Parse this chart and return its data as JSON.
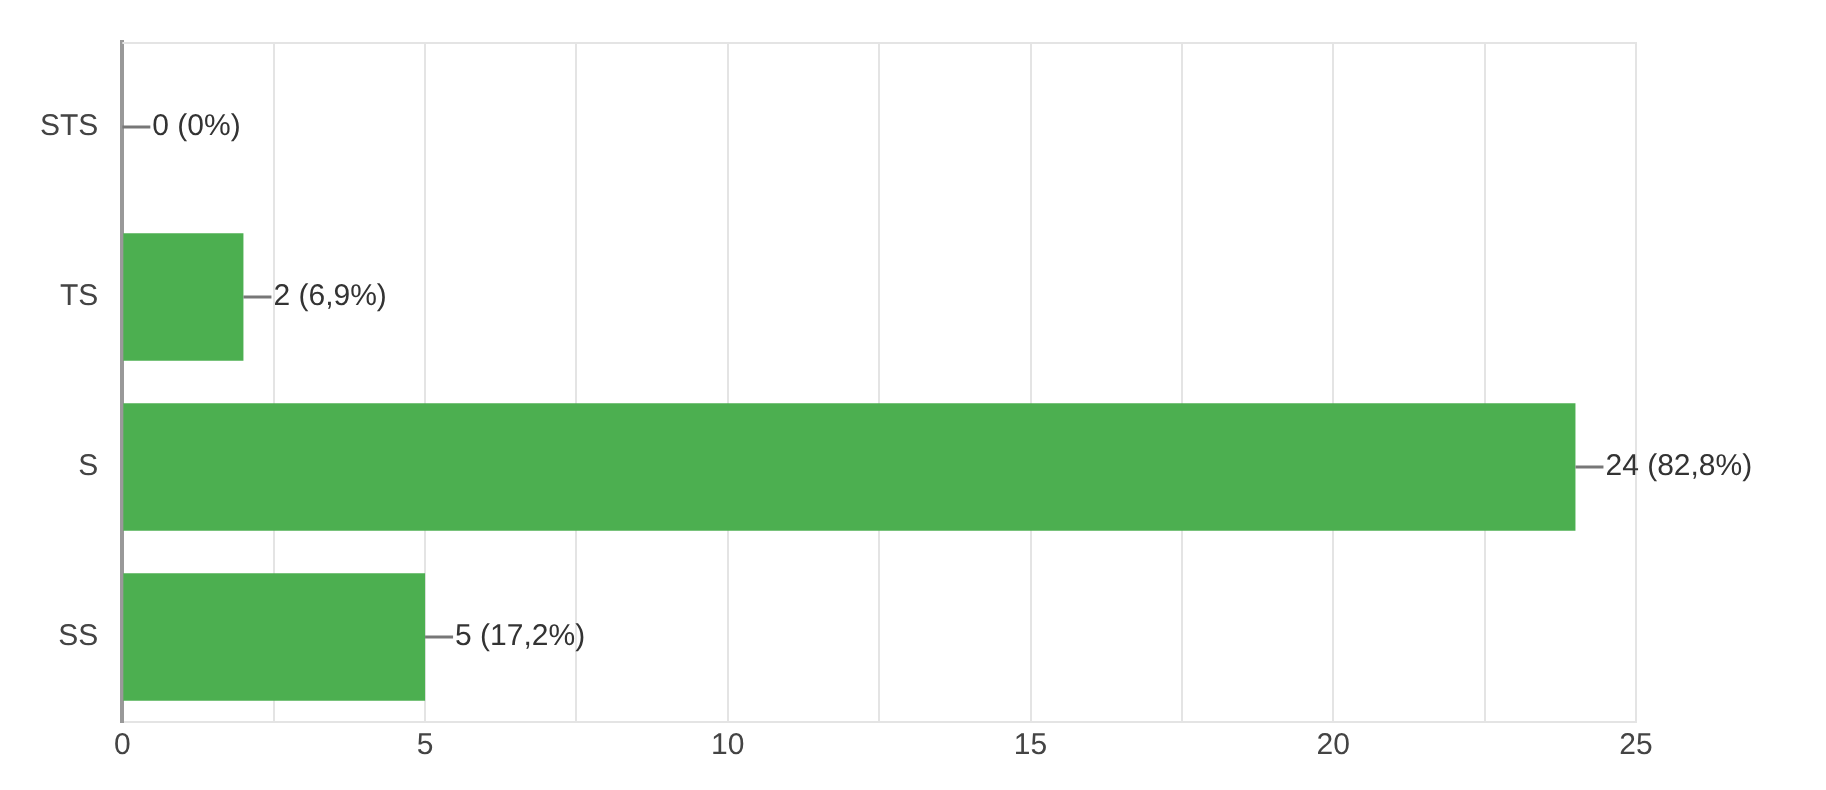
{
  "chart_data": {
    "type": "bar",
    "orientation": "horizontal",
    "categories": [
      "STS",
      "TS",
      "S",
      "SS"
    ],
    "values": [
      0,
      2,
      24,
      5
    ],
    "color": "#4caf50",
    "value_labels": [
      "0 (0%)",
      "2 (6,9%)",
      "24 (82,8%)",
      "5 (17,2%)"
    ],
    "xlim": [
      0,
      25
    ],
    "xticks": [
      0,
      {
        "value": 2.5,
        "label": null
      },
      5,
      {
        "value": 7.5,
        "label": null
      },
      10,
      {
        "value": 12.5,
        "label": null
      },
      15,
      {
        "value": 17.5,
        "label": null
      },
      20,
      {
        "value": 22.5,
        "label": null
      },
      25
    ],
    "grid": "x",
    "legend": false
  }
}
